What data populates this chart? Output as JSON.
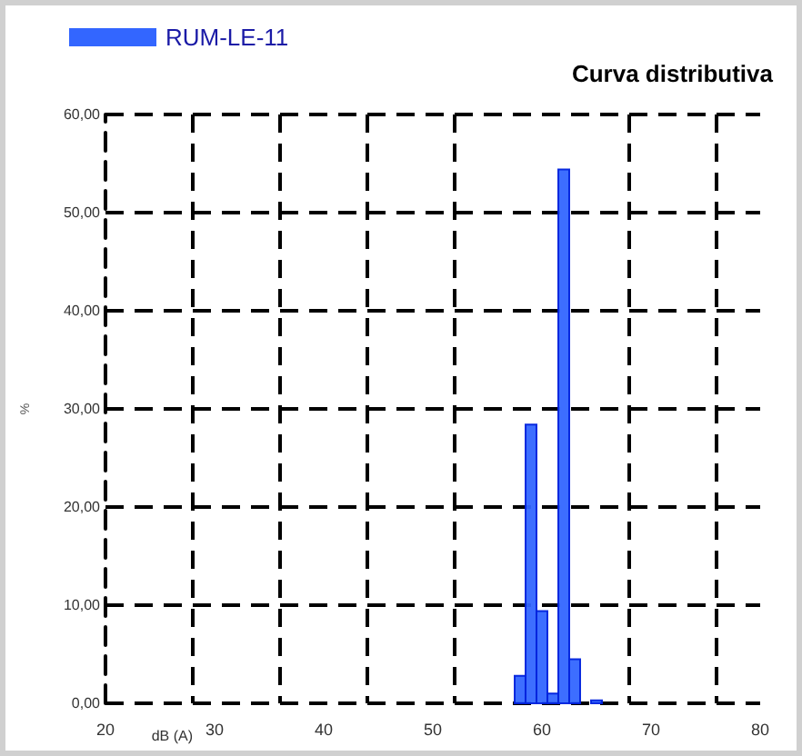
{
  "chart_data": {
    "type": "histogram",
    "title": "Curva distributiva",
    "xlabel": "dB (A)",
    "ylabel": "%",
    "bins": [
      57.5,
      58.5,
      59.5,
      60.5,
      61.5,
      62.5,
      63.5,
      64.5,
      65.5
    ],
    "series": [
      {
        "name": "RUM-LE-11",
        "color": "#3366ff",
        "values": [
          2.8,
          28.4,
          9.4,
          1.0,
          54.4,
          4.5,
          0,
          0.3
        ]
      }
    ],
    "xlim": [
      20,
      80
    ],
    "xticks": [
      20,
      {
        "value": 28,
        "label": null
      },
      30,
      {
        "value": 36,
        "label": null
      },
      40,
      {
        "value": 44,
        "label": null
      },
      50,
      {
        "value": 52,
        "label": null
      },
      {
        "value": 60,
        "label": "60"
      },
      {
        "value": 68,
        "label": null
      },
      70,
      {
        "value": 76,
        "label": null
      },
      80
    ],
    "ylim": [
      0,
      60
    ],
    "yticks": [
      {
        "value": 0,
        "label": "0,00"
      },
      {
        "value": 10,
        "label": "10,00"
      },
      {
        "value": 20,
        "label": "20,00"
      },
      {
        "value": 30,
        "label": "30,00"
      },
      {
        "value": 40,
        "label": "40,00"
      },
      {
        "value": 50,
        "label": "50,00"
      },
      {
        "value": 60,
        "label": "60,00"
      }
    ],
    "grid": true,
    "legend": "top left",
    "line_style": "dashed"
  }
}
